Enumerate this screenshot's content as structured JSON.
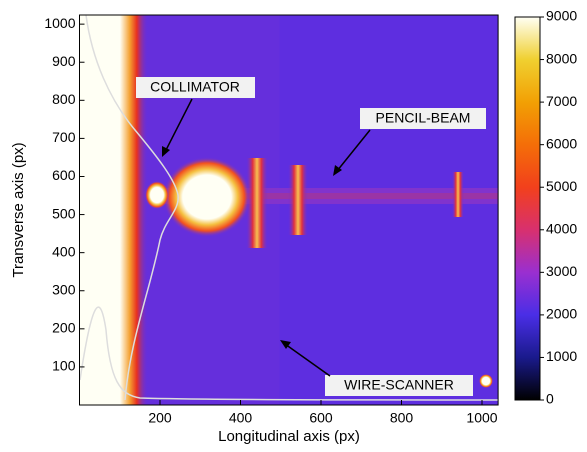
{
  "chart_data": {
    "type": "heatmap",
    "xlabel": "Longitudinal axis (px)",
    "ylabel": "Transverse axis (px)",
    "xlim": [
      0,
      1040
    ],
    "xticks": [
      200,
      400,
      600,
      800,
      1000
    ],
    "ylim": [
      0,
      1024
    ],
    "yticks": [
      100,
      200,
      300,
      400,
      500,
      600,
      700,
      800,
      900,
      1000
    ],
    "colorbar": {
      "ylim": [
        0,
        9000
      ],
      "yticks": [
        0,
        1000,
        2000,
        3000,
        4000,
        5000,
        6000,
        7000,
        8000,
        9000
      ],
      "colors": [
        "#000000",
        "#1a1a8c",
        "#4a2ee6",
        "#9a2fd0",
        "#d8306e",
        "#f2401c",
        "#f46e08",
        "#f2a004",
        "#f0d030",
        "#fffff4"
      ]
    },
    "annotations": [
      "COLLIMATOR",
      "PENCIL-BEAM",
      "WIRE-SCANNER"
    ]
  }
}
